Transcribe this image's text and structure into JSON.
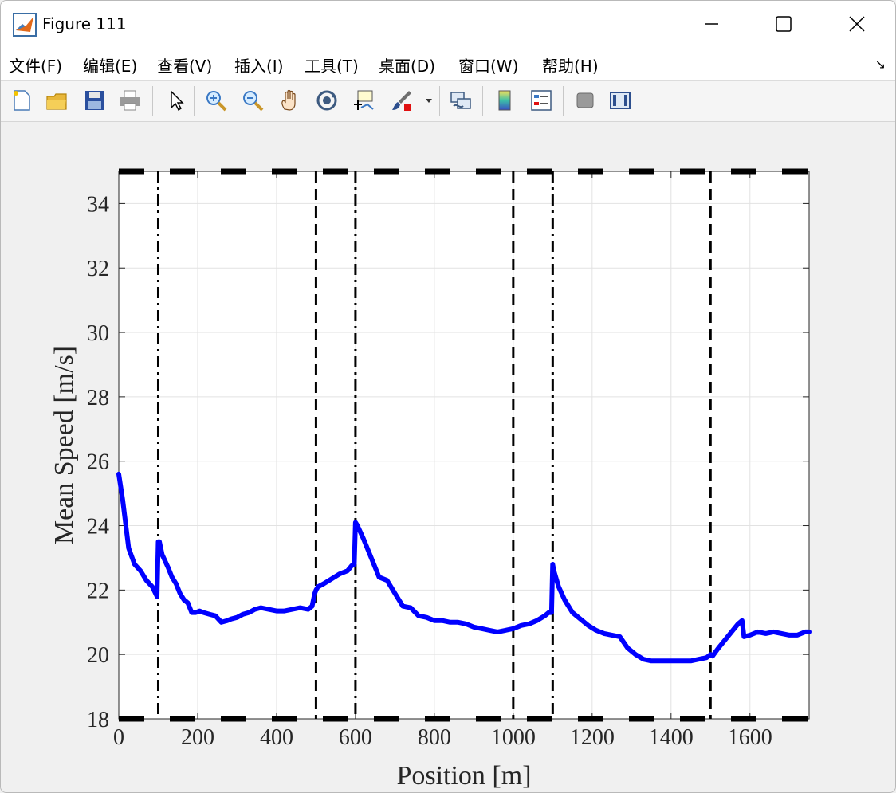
{
  "window": {
    "title": "Figure 111"
  },
  "menu": [
    "文件(F)",
    "编辑(E)",
    "查看(V)",
    "插入(I)",
    "工具(T)",
    "桌面(D)",
    "窗口(W)",
    "帮助(H)"
  ],
  "toolbar": {
    "icons": [
      "new-figure-icon",
      "open-file-icon",
      "save-icon",
      "print-icon",
      "pointer-icon",
      "zoom-in-icon",
      "zoom-out-icon",
      "pan-icon",
      "rotate-3d-icon",
      "data-cursor-icon",
      "brush-icon",
      "link-plot-icon",
      "colorbar-icon",
      "legend-icon",
      "hide-plot-tools-icon",
      "show-plot-tools-icon"
    ]
  },
  "chart_data": {
    "type": "line",
    "title": "",
    "xlabel": "Position [m]",
    "ylabel": "Mean Speed [m/s]",
    "xlim": [
      0,
      1750
    ],
    "ylim": [
      18,
      35
    ],
    "xticks": [
      0,
      200,
      400,
      600,
      800,
      1000,
      1200,
      1400,
      1600
    ],
    "yticks": [
      18,
      20,
      22,
      24,
      26,
      28,
      30,
      32,
      34
    ],
    "grid": true,
    "series": [
      {
        "color": "#0000ff",
        "x": [
          0,
          10,
          25,
          40,
          55,
          70,
          85,
          97,
          100,
          103,
          110,
          125,
          135,
          145,
          155,
          165,
          175,
          185,
          195,
          205,
          215,
          230,
          245,
          260,
          275,
          285,
          300,
          315,
          330,
          345,
          360,
          380,
          400,
          420,
          440,
          460,
          480,
          490,
          497,
          500,
          505,
          520,
          540,
          560,
          580,
          590,
          597,
          600,
          605,
          620,
          640,
          660,
          680,
          700,
          720,
          740,
          760,
          780,
          800,
          820,
          840,
          860,
          880,
          900,
          920,
          940,
          960,
          980,
          1000,
          1020,
          1040,
          1060,
          1080,
          1090,
          1097,
          1100,
          1103,
          1115,
          1130,
          1150,
          1170,
          1190,
          1210,
          1230,
          1250,
          1270,
          1290,
          1310,
          1330,
          1350,
          1370,
          1390,
          1410,
          1430,
          1450,
          1470,
          1490,
          1500,
          1505,
          1520,
          1540,
          1560,
          1570,
          1580,
          1585,
          1600,
          1620,
          1640,
          1660,
          1680,
          1700,
          1720,
          1740,
          1750
        ],
        "y": [
          25.6,
          24.8,
          23.3,
          22.8,
          22.6,
          22.3,
          22.1,
          21.8,
          23.5,
          23.5,
          23.1,
          22.7,
          22.4,
          22.2,
          21.9,
          21.7,
          21.6,
          21.3,
          21.3,
          21.35,
          21.3,
          21.25,
          21.2,
          21.0,
          21.05,
          21.1,
          21.15,
          21.25,
          21.3,
          21.4,
          21.45,
          21.4,
          21.35,
          21.35,
          21.4,
          21.45,
          21.4,
          21.5,
          21.9,
          22.0,
          22.1,
          22.2,
          22.35,
          22.5,
          22.6,
          22.75,
          22.8,
          24.1,
          24.0,
          23.6,
          23.0,
          22.4,
          22.3,
          21.9,
          21.5,
          21.45,
          21.2,
          21.15,
          21.05,
          21.05,
          21.0,
          21.0,
          20.95,
          20.85,
          20.8,
          20.75,
          20.7,
          20.75,
          20.8,
          20.9,
          20.95,
          21.05,
          21.2,
          21.3,
          21.3,
          22.8,
          22.6,
          22.1,
          21.7,
          21.3,
          21.1,
          20.9,
          20.75,
          20.65,
          20.6,
          20.55,
          20.2,
          20.0,
          19.85,
          19.8,
          19.8,
          19.8,
          19.8,
          19.8,
          19.8,
          19.85,
          19.9,
          20.0,
          19.95,
          20.2,
          20.5,
          20.8,
          20.95,
          21.05,
          20.55,
          20.6,
          20.7,
          20.65,
          20.7,
          20.65,
          20.6,
          20.6,
          20.7,
          20.7
        ]
      }
    ],
    "vlines": [
      {
        "x": 100,
        "style": "dash-dot"
      },
      {
        "x": 500,
        "style": "dashed"
      },
      {
        "x": 600,
        "style": "dash-dot"
      },
      {
        "x": 1000,
        "style": "dashed"
      },
      {
        "x": 1100,
        "style": "dash-dot"
      },
      {
        "x": 1500,
        "style": "dashed"
      }
    ],
    "hlines": [
      {
        "y": 35,
        "style": "dashed"
      },
      {
        "y": 18,
        "style": "dashed"
      }
    ]
  }
}
